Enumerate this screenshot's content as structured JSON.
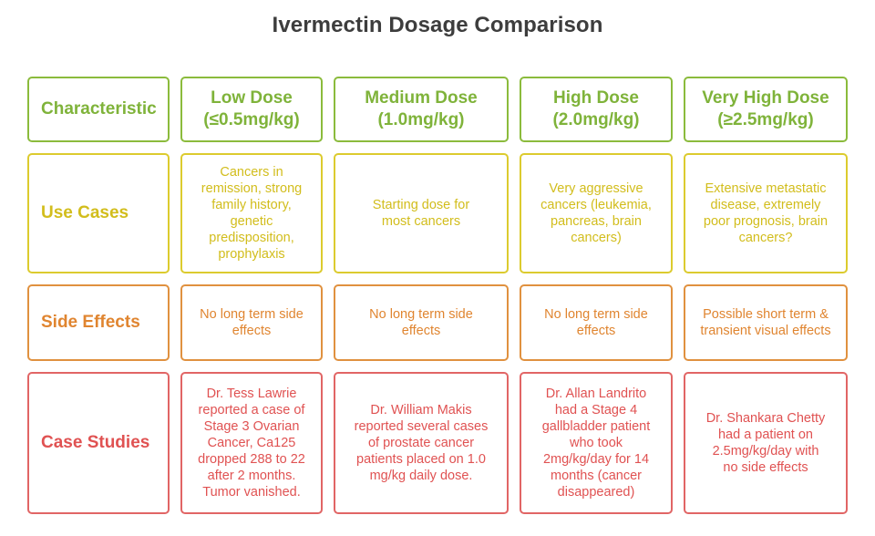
{
  "title": "Ivermectin Dosage Comparison",
  "header": {
    "label": "Characteristic",
    "columns": [
      "Low Dose\n(≤0.5mg/kg)",
      "Medium Dose\n(1.0mg/kg)",
      "High Dose\n(2.0mg/kg)",
      "Very High Dose\n(≥2.5mg/kg)"
    ]
  },
  "rows": [
    {
      "label": "Use Cases",
      "cells": [
        "Cancers in remission, strong family history, genetic predisposition, prophylaxis",
        "Starting dose for most cancers",
        "Very aggressive cancers (leukemia, pancreas, brain cancers)",
        "Extensive metastatic disease, extremely poor prognosis, brain cancers?"
      ]
    },
    {
      "label": "Side Effects",
      "cells": [
        "No long term side effects",
        "No long term side effects",
        "No long term side effects",
        "Possible short term & transient visual effects"
      ]
    },
    {
      "label": "Case Studies",
      "cells": [
        "Dr. Tess Lawrie reported a case of Stage 3 Ovarian Cancer, Ca125 dropped 288 to 22 after 2 months. Tumor vanished.",
        "Dr. William Makis reported several cases of prostate cancer patients placed on 1.0 mg/kg daily dose.",
        "Dr. Allan Landrito had a Stage 4 gallbladder patient who took 2mg/kg/day for 14 months (cancer disappeared)",
        "Dr. Shankara Chetty had a patient on 2.5mg/kg/day with no side effects"
      ]
    }
  ]
}
